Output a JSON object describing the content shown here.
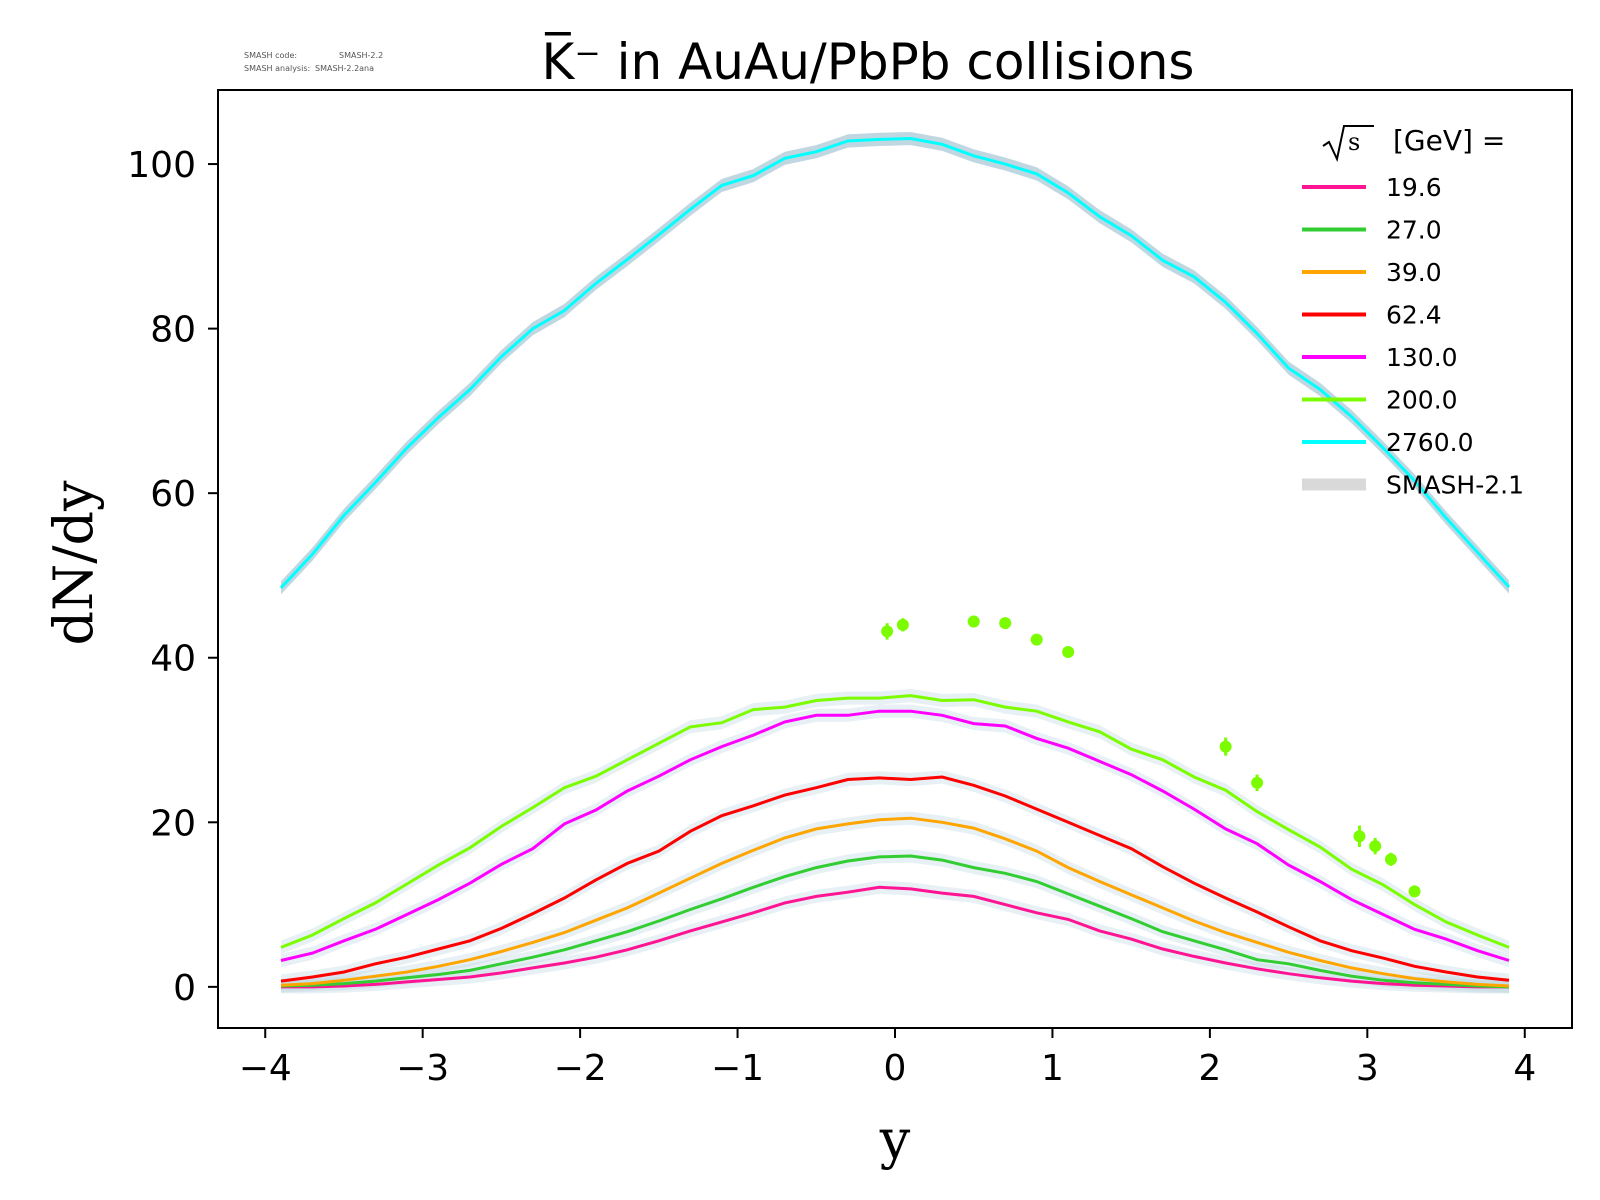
{
  "meta": {
    "code_label": "SMASH code:",
    "code_value": "SMASH-2.2",
    "analysis_label": "SMASH analysis:",
    "analysis_value": "SMASH-2.2ana"
  },
  "chart_data": {
    "type": "line",
    "title": "K̅⁻ in AuAu/PbPb collisions",
    "xlabel": "y",
    "ylabel": "dN/dy",
    "xlim": [
      -4.3,
      4.3
    ],
    "ylim": [
      -5,
      109
    ],
    "xticks": [
      -4,
      -3,
      -2,
      -1,
      0,
      1,
      2,
      3,
      4
    ],
    "yticks": [
      0,
      20,
      40,
      60,
      80,
      100
    ],
    "xtick_labels": [
      "−4",
      "−3",
      "−2",
      "−1",
      "0",
      "1",
      "2",
      "3",
      "4"
    ],
    "ytick_labels": [
      "0",
      "20",
      "40",
      "60",
      "80",
      "100"
    ],
    "grid": false,
    "legend": {
      "title_root": "s",
      "title_suffix": "[GeV] =",
      "placement": "top-right",
      "band_label": "SMASH-2.1",
      "band_color": "#d9d9d9"
    },
    "x": [
      -3.9,
      -3.7,
      -3.5,
      -3.3,
      -3.1,
      -2.9,
      -2.7,
      -2.5,
      -2.3,
      -2.1,
      -1.9,
      -1.7,
      -1.5,
      -1.3,
      -1.1,
      -0.9,
      -0.7,
      -0.5,
      -0.3,
      -0.1,
      0.1,
      0.3,
      0.5,
      0.7,
      0.9,
      1.1,
      1.3,
      1.5,
      1.7,
      1.9,
      2.1,
      2.3,
      2.5,
      2.7,
      2.9,
      3.1,
      3.3,
      3.5,
      3.7,
      3.9
    ],
    "series": [
      {
        "name": "19.6",
        "color": "#ff1493",
        "values": [
          0.0,
          0.0,
          0.1,
          0.3,
          0.6,
          0.9,
          1.2,
          1.7,
          2.3,
          2.9,
          3.6,
          4.5,
          5.6,
          6.8,
          7.9,
          9.0,
          10.2,
          11.0,
          11.5,
          12.1,
          11.9,
          11.4,
          11.0,
          10.0,
          9.0,
          8.2,
          6.8,
          5.8,
          4.6,
          3.7,
          2.9,
          2.2,
          1.6,
          1.1,
          0.7,
          0.4,
          0.2,
          0.1,
          0.0,
          0.0
        ]
      },
      {
        "name": "27.0",
        "color": "#32cd32",
        "values": [
          0.1,
          0.2,
          0.4,
          0.7,
          1.1,
          1.5,
          2.0,
          2.8,
          3.6,
          4.5,
          5.6,
          6.7,
          8.0,
          9.4,
          10.7,
          12.1,
          13.4,
          14.5,
          15.3,
          15.8,
          15.9,
          15.4,
          14.5,
          13.8,
          12.8,
          11.3,
          9.8,
          8.3,
          6.7,
          5.6,
          4.5,
          3.3,
          2.8,
          2.0,
          1.3,
          0.8,
          0.5,
          0.3,
          0.1,
          0.0
        ]
      },
      {
        "name": "39.0",
        "color": "#ffa500",
        "values": [
          0.2,
          0.4,
          0.8,
          1.3,
          1.8,
          2.5,
          3.3,
          4.3,
          5.4,
          6.6,
          8.1,
          9.6,
          11.4,
          13.2,
          15.0,
          16.6,
          18.1,
          19.2,
          19.8,
          20.3,
          20.5,
          20.0,
          19.3,
          18.0,
          16.5,
          14.5,
          12.8,
          11.2,
          9.6,
          8.0,
          6.6,
          5.4,
          4.2,
          3.2,
          2.3,
          1.6,
          1.0,
          0.6,
          0.3,
          0.1
        ]
      },
      {
        "name": "62.4",
        "color": "#ff0000",
        "values": [
          0.7,
          1.2,
          1.8,
          2.8,
          3.6,
          4.6,
          5.6,
          7.1,
          8.9,
          10.8,
          13.0,
          15.0,
          16.5,
          18.9,
          20.8,
          22.0,
          23.3,
          24.2,
          25.2,
          25.4,
          25.2,
          25.5,
          24.5,
          23.2,
          21.6,
          20.0,
          18.4,
          16.8,
          14.6,
          12.6,
          10.8,
          9.1,
          7.3,
          5.6,
          4.4,
          3.5,
          2.5,
          1.8,
          1.2,
          0.8
        ]
      },
      {
        "name": "130.0",
        "color": "#ff00ff",
        "values": [
          3.2,
          4.1,
          5.6,
          7.0,
          8.8,
          10.6,
          12.6,
          14.9,
          16.8,
          19.8,
          21.5,
          23.8,
          25.6,
          27.6,
          29.2,
          30.6,
          32.2,
          33.0,
          33.0,
          33.5,
          33.5,
          33.0,
          32.0,
          31.7,
          30.2,
          29.0,
          27.4,
          25.8,
          23.8,
          21.6,
          19.2,
          17.4,
          14.8,
          12.8,
          10.6,
          8.8,
          7.0,
          5.8,
          4.4,
          3.2
        ]
      },
      {
        "name": "200.0",
        "color": "#7cfc00",
        "values": [
          4.8,
          6.3,
          8.3,
          10.2,
          12.5,
          14.8,
          16.9,
          19.5,
          21.8,
          24.2,
          25.6,
          27.6,
          29.6,
          31.6,
          32.1,
          33.7,
          34.0,
          34.8,
          35.1,
          35.1,
          35.4,
          34.8,
          34.9,
          34.0,
          33.5,
          32.2,
          31.0,
          28.9,
          27.6,
          25.5,
          23.9,
          21.3,
          19.1,
          17.0,
          14.3,
          12.4,
          10.0,
          7.9,
          6.3,
          4.8
        ]
      },
      {
        "name": "2760.0",
        "color": "#00ffff",
        "values": [
          48.5,
          52.6,
          57.3,
          61.3,
          65.5,
          69.2,
          72.6,
          76.6,
          80.0,
          82.2,
          85.5,
          88.4,
          91.4,
          94.5,
          97.4,
          98.6,
          100.7,
          101.5,
          102.8,
          103.0,
          103.1,
          102.4,
          101.0,
          100.0,
          98.8,
          96.5,
          93.6,
          91.3,
          88.3,
          86.3,
          83.2,
          79.4,
          75.2,
          72.6,
          69.3,
          65.5,
          61.5,
          57.0,
          52.8,
          48.6
        ]
      }
    ],
    "band": {
      "name": "SMASH-2.1",
      "color": "#b9d3df",
      "spread": 0.8
    },
    "measurements": {
      "color": "#7cfc00",
      "points": [
        {
          "x": -0.05,
          "y": 43.2,
          "err": 1.0
        },
        {
          "x": 0.05,
          "y": 44.0,
          "err": 0.8
        },
        {
          "x": 0.5,
          "y": 44.4,
          "err": 0.7
        },
        {
          "x": 0.7,
          "y": 44.2,
          "err": 0.7
        },
        {
          "x": 0.9,
          "y": 42.2,
          "err": 0.7
        },
        {
          "x": 1.1,
          "y": 40.7,
          "err": 0.7
        },
        {
          "x": 2.1,
          "y": 29.2,
          "err": 1.1
        },
        {
          "x": 2.3,
          "y": 24.8,
          "err": 1.0
        },
        {
          "x": 2.95,
          "y": 18.3,
          "err": 1.3
        },
        {
          "x": 3.05,
          "y": 17.1,
          "err": 1.0
        },
        {
          "x": 3.15,
          "y": 15.5,
          "err": 0.8
        },
        {
          "x": 3.3,
          "y": 11.6,
          "err": 0.7
        }
      ]
    }
  }
}
